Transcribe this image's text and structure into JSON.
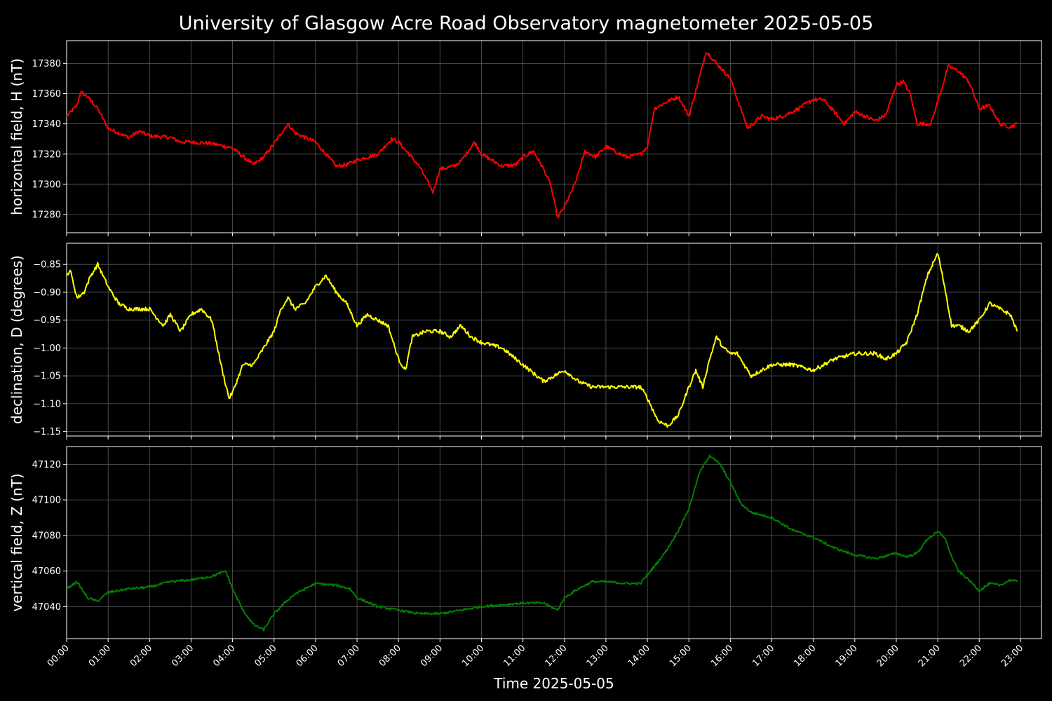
{
  "chart_data": {
    "title": "University of Glasgow Acre Road Observatory magnetometer 2025-05-05",
    "xlabel": "Time 2025-05-05",
    "x_ticks": [
      "00:00",
      "01:00",
      "02:00",
      "03:00",
      "04:00",
      "05:00",
      "06:00",
      "07:00",
      "08:00",
      "09:00",
      "10:00",
      "11:00",
      "12:00",
      "13:00",
      "14:00",
      "15:00",
      "16:00",
      "17:00",
      "18:00",
      "19:00",
      "20:00",
      "21:00",
      "22:00",
      "23:00"
    ],
    "xlim": [
      "00:00",
      "23:30"
    ],
    "grid": true,
    "panels": [
      {
        "type": "line",
        "ylabel": "horizontal field, H (nT)",
        "color": "#ff0000",
        "ylim": [
          17268,
          17395
        ],
        "yticks": [
          17280,
          17300,
          17320,
          17340,
          17360,
          17380
        ],
        "ytick_labels": [
          "17280",
          "17300",
          "17320",
          "17340",
          "17360",
          "17380"
        ],
        "series": [
          {
            "x": [
              "00:00",
              "00:15",
              "00:20",
              "00:30",
              "00:45",
              "01:00",
              "01:30",
              "01:45",
              "02:00",
              "02:30",
              "02:45",
              "03:00",
              "03:30",
              "04:00",
              "04:30",
              "04:45",
              "05:00",
              "05:20",
              "05:30",
              "05:50",
              "06:00",
              "06:30",
              "06:45",
              "07:00",
              "07:30",
              "07:50",
              "08:00",
              "08:30",
              "08:50",
              "09:00",
              "09:20",
              "09:30",
              "09:50",
              "10:00",
              "10:30",
              "10:50",
              "11:00",
              "11:15",
              "11:30",
              "11:40",
              "11:50",
              "12:00",
              "12:15",
              "12:30",
              "12:45",
              "13:00",
              "13:30",
              "13:50",
              "14:00",
              "14:10",
              "14:30",
              "14:45",
              "15:00",
              "15:15",
              "15:25",
              "15:40",
              "16:00",
              "16:15",
              "16:25",
              "16:45",
              "17:00",
              "17:15",
              "17:30",
              "17:45",
              "18:00",
              "18:15",
              "18:30",
              "18:45",
              "19:00",
              "19:15",
              "19:30",
              "19:45",
              "20:00",
              "20:10",
              "20:20",
              "20:30",
              "20:50",
              "21:00",
              "21:10",
              "21:15",
              "21:30",
              "21:45",
              "22:00",
              "22:15",
              "22:30",
              "22:45",
              "22:55"
            ],
            "y": [
              17345,
              17352,
              17361,
              17358,
              17350,
              17337,
              17331,
              17335,
              17332,
              17331,
              17328,
              17328,
              17327,
              17324,
              17313,
              17318,
              17327,
              17340,
              17334,
              17330,
              17328,
              17312,
              17313,
              17316,
              17320,
              17330,
              17328,
              17312,
              17295,
              17310,
              17312,
              17315,
              17328,
              17320,
              17312,
              17313,
              17318,
              17322,
              17310,
              17300,
              17278,
              17285,
              17300,
              17322,
              17318,
              17325,
              17318,
              17320,
              17325,
              17350,
              17355,
              17358,
              17345,
              17370,
              17388,
              17380,
              17370,
              17350,
              17337,
              17345,
              17343,
              17345,
              17348,
              17352,
              17356,
              17356,
              17348,
              17340,
              17348,
              17345,
              17342,
              17346,
              17366,
              17368,
              17360,
              17340,
              17340,
              17355,
              17370,
              17378,
              17375,
              17368,
              17350,
              17352,
              17340,
              17338,
              17340
            ]
          }
        ]
      },
      {
        "type": "line",
        "ylabel": "declination, D (degrees)",
        "color": "#ffff00",
        "ylim": [
          -1.158,
          -0.812
        ],
        "yticks": [
          -0.85,
          -0.9,
          -0.95,
          -1.0,
          -1.05,
          -1.1,
          -1.15
        ],
        "ytick_labels": [
          "−0.85",
          "−0.90",
          "−0.95",
          "−1.00",
          "−1.05",
          "−1.10",
          "−1.15"
        ],
        "series": [
          {
            "x": [
              "00:00",
              "00:05",
              "00:15",
              "00:25",
              "00:35",
              "00:45",
              "01:00",
              "01:15",
              "01:30",
              "01:45",
              "02:00",
              "02:20",
              "02:30",
              "02:45",
              "03:00",
              "03:15",
              "03:30",
              "03:45",
              "03:55",
              "04:00",
              "04:15",
              "04:30",
              "04:45",
              "05:00",
              "05:10",
              "05:20",
              "05:30",
              "05:45",
              "06:00",
              "06:15",
              "06:30",
              "06:45",
              "07:00",
              "07:15",
              "07:30",
              "07:45",
              "08:00",
              "08:10",
              "08:20",
              "08:40",
              "09:00",
              "09:15",
              "09:30",
              "09:45",
              "10:00",
              "10:30",
              "11:00",
              "11:30",
              "12:00",
              "12:20",
              "12:40",
              "13:00",
              "13:30",
              "13:50",
              "14:00",
              "14:15",
              "14:30",
              "14:45",
              "15:00",
              "15:10",
              "15:20",
              "15:30",
              "15:40",
              "15:50",
              "16:00",
              "16:10",
              "16:20",
              "16:30",
              "16:45",
              "17:00",
              "17:30",
              "18:00",
              "18:15",
              "18:30",
              "19:00",
              "19:30",
              "19:45",
              "20:00",
              "20:15",
              "20:30",
              "20:45",
              "21:00",
              "21:10",
              "21:20",
              "21:30",
              "21:45",
              "22:00",
              "22:15",
              "22:30",
              "22:45",
              "22:55"
            ],
            "y": [
              -0.87,
              -0.86,
              -0.91,
              -0.9,
              -0.87,
              -0.85,
              -0.89,
              -0.92,
              -0.93,
              -0.93,
              -0.93,
              -0.96,
              -0.94,
              -0.97,
              -0.94,
              -0.93,
              -0.95,
              -1.04,
              -1.09,
              -1.08,
              -1.03,
              -1.03,
              -1.0,
              -0.97,
              -0.93,
              -0.91,
              -0.93,
              -0.92,
              -0.89,
              -0.87,
              -0.9,
              -0.92,
              -0.96,
              -0.94,
              -0.95,
              -0.96,
              -1.02,
              -1.04,
              -0.98,
              -0.97,
              -0.97,
              -0.98,
              -0.96,
              -0.98,
              -0.99,
              -1.0,
              -1.03,
              -1.06,
              -1.04,
              -1.06,
              -1.07,
              -1.07,
              -1.07,
              -1.07,
              -1.09,
              -1.13,
              -1.14,
              -1.12,
              -1.07,
              -1.04,
              -1.07,
              -1.02,
              -0.98,
              -1.0,
              -1.01,
              -1.01,
              -1.03,
              -1.05,
              -1.04,
              -1.03,
              -1.03,
              -1.04,
              -1.03,
              -1.02,
              -1.01,
              -1.01,
              -1.02,
              -1.01,
              -0.99,
              -0.94,
              -0.87,
              -0.83,
              -0.89,
              -0.96,
              -0.96,
              -0.97,
              -0.95,
              -0.92,
              -0.93,
              -0.94,
              -0.97
            ]
          }
        ]
      },
      {
        "type": "line",
        "ylabel": "vertical field, Z (nT)",
        "color": "#008000",
        "ylim": [
          47022,
          47130
        ],
        "yticks": [
          47040,
          47060,
          47080,
          47100,
          47120
        ],
        "ytick_labels": [
          "47040",
          "47060",
          "47080",
          "47100",
          "47120"
        ],
        "series": [
          {
            "x": [
              "00:00",
              "00:15",
              "00:30",
              "00:45",
              "01:00",
              "01:30",
              "02:00",
              "02:30",
              "03:00",
              "03:30",
              "03:50",
              "04:00",
              "04:15",
              "04:30",
              "04:45",
              "05:00",
              "05:15",
              "05:30",
              "05:45",
              "06:00",
              "06:30",
              "06:50",
              "07:00",
              "07:30",
              "08:00",
              "08:30",
              "09:00",
              "09:30",
              "10:00",
              "10:30",
              "11:00",
              "11:30",
              "11:50",
              "12:00",
              "12:20",
              "12:40",
              "13:00",
              "13:30",
              "13:50",
              "14:00",
              "14:15",
              "14:30",
              "14:45",
              "15:00",
              "15:15",
              "15:30",
              "15:45",
              "16:00",
              "16:15",
              "16:30",
              "17:00",
              "17:30",
              "18:00",
              "18:30",
              "19:00",
              "19:30",
              "20:00",
              "20:15",
              "20:30",
              "20:45",
              "21:00",
              "21:10",
              "21:20",
              "21:30",
              "21:45",
              "22:00",
              "22:15",
              "22:30",
              "22:45",
              "22:55"
            ],
            "y": [
              47050,
              47054,
              47045,
              47043,
              47048,
              47050,
              47051,
              47054,
              47055,
              47057,
              47060,
              47050,
              47038,
              47030,
              47027,
              47036,
              47042,
              47047,
              47050,
              47053,
              47052,
              47050,
              47045,
              47040,
              47038,
              47036,
              47036,
              47038,
              47040,
              47041,
              47042,
              47042,
              47038,
              47045,
              47050,
              47054,
              47054,
              47053,
              47053,
              47058,
              47065,
              47073,
              47083,
              47095,
              47115,
              47125,
              47120,
              47110,
              47098,
              47093,
              47090,
              47083,
              47079,
              47073,
              47069,
              47067,
              47070,
              47068,
              47070,
              47078,
              47082,
              47079,
              47068,
              47060,
              47055,
              47049,
              47053,
              47052,
              47055,
              47054
            ]
          }
        ]
      }
    ]
  }
}
